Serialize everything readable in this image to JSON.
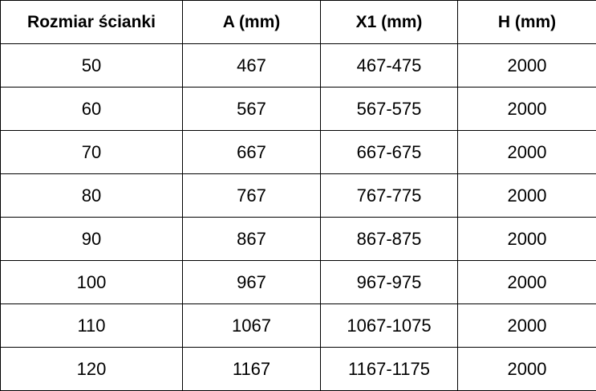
{
  "table": {
    "headers": [
      "Rozmiar ścianki",
      "A (mm)",
      "X1 (mm)",
      "H (mm)"
    ],
    "rows": [
      [
        50,
        467,
        "467-475",
        2000
      ],
      [
        60,
        567,
        "567-575",
        2000
      ],
      [
        70,
        667,
        "667-675",
        2000
      ],
      [
        80,
        767,
        "767-775",
        2000
      ],
      [
        90,
        867,
        "867-875",
        2000
      ],
      [
        100,
        967,
        "967-975",
        2000
      ],
      [
        110,
        1067,
        "1067-1075",
        2000
      ],
      [
        120,
        1167,
        "1167-1175",
        2000
      ]
    ]
  }
}
